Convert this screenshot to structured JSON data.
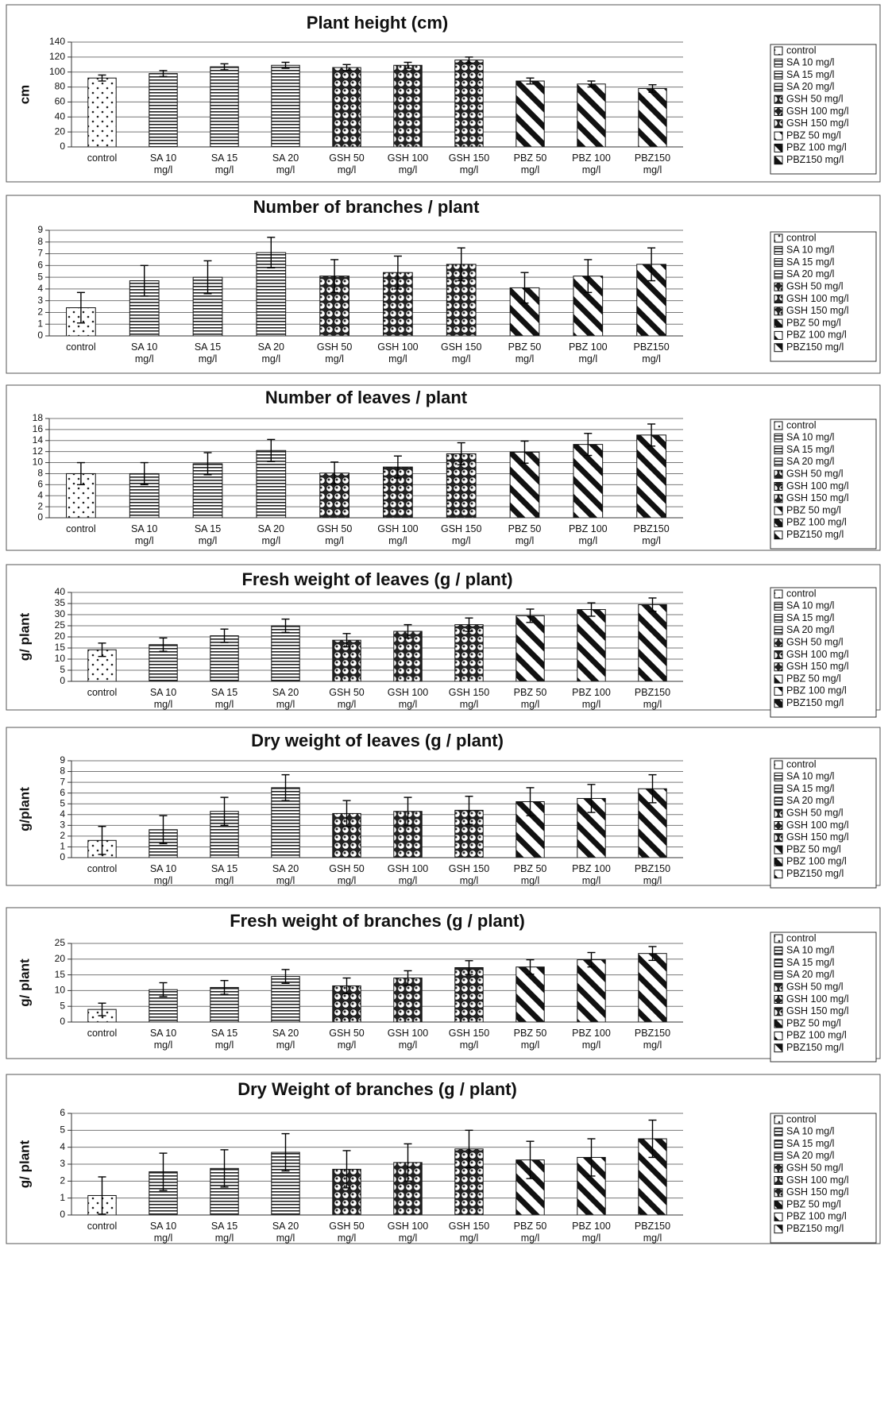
{
  "legend_labels": [
    "control",
    "SA 10 mg/l",
    "SA 15 mg/l",
    "SA 20 mg/l",
    "GSH 50 mg/l",
    "GSH 100 mg/l",
    "GSH 150 mg/l",
    "PBZ 50 mg/l",
    "PBZ 100 mg/l",
    "PBZ150 mg/l"
  ],
  "chart_data": [
    {
      "type": "bar",
      "title": "Plant height (cm)",
      "ylabel": "cm",
      "xlabel": "",
      "categories": [
        "control",
        "SA 10 mg/l",
        "SA 15 mg/l",
        "SA 20 mg/l",
        "GSH 50 mg/l",
        "GSH 100 mg/l",
        "GSH 150 mg/l",
        "PBZ 50 mg/l",
        "PBZ 100 mg/l",
        "PBZ150 mg/l"
      ],
      "values": [
        92,
        98,
        107,
        109,
        106,
        109,
        116,
        88,
        84,
        78
      ],
      "errors": [
        4,
        4,
        4,
        4,
        4,
        4,
        4,
        4,
        4,
        5
      ],
      "ylim": [
        0,
        140
      ],
      "ystep": 20,
      "grid": true,
      "legend_position": "right"
    },
    {
      "type": "bar",
      "title": "Number of branches / plant",
      "ylabel": "",
      "xlabel": "",
      "categories": [
        "control",
        "SA 10 mg/l",
        "SA 15 mg/l",
        "SA 20 mg/l",
        "GSH 50 mg/l",
        "GSH 100 mg/l",
        "GSH 150 mg/l",
        "PBZ 50 mg/l",
        "PBZ 100 mg/l",
        "PBZ150 mg/l"
      ],
      "values": [
        2.4,
        4.7,
        5.0,
        7.1,
        5.1,
        5.4,
        6.1,
        4.1,
        5.1,
        6.1
      ],
      "errors": [
        1.3,
        1.3,
        1.4,
        1.3,
        1.4,
        1.4,
        1.4,
        1.3,
        1.4,
        1.4
      ],
      "ylim": [
        0,
        9
      ],
      "ystep": 1,
      "grid": true,
      "legend_position": "right"
    },
    {
      "type": "bar",
      "title": "Number of leaves / plant",
      "ylabel": "",
      "xlabel": "",
      "categories": [
        "control",
        "SA 10 mg/l",
        "SA 15 mg/l",
        "SA 20 mg/l",
        "GSH 50 mg/l",
        "GSH 100 mg/l",
        "GSH 150 mg/l",
        "PBZ 50 mg/l",
        "PBZ 100 mg/l",
        "PBZ150 mg/l"
      ],
      "values": [
        8,
        8,
        9.8,
        12.2,
        8.1,
        9.2,
        11.6,
        11.9,
        13.3,
        15
      ],
      "errors": [
        2,
        2,
        2,
        2,
        2,
        2,
        2,
        2,
        2,
        2
      ],
      "ylim": [
        0,
        18
      ],
      "ystep": 2,
      "grid": true,
      "legend_position": "right"
    },
    {
      "type": "bar",
      "title": "Fresh weight of leaves (g / plant)",
      "ylabel": "g/ plant",
      "xlabel": "",
      "categories": [
        "control",
        "SA 10 mg/l",
        "SA 15 mg/l",
        "SA 20 mg/l",
        "GSH 50 mg/l",
        "GSH 100 mg/l",
        "GSH 150 mg/l",
        "PBZ 50 mg/l",
        "PBZ 100 mg/l",
        "PBZ150 mg/l"
      ],
      "values": [
        14.2,
        16.5,
        20.5,
        25,
        18.5,
        22.5,
        25.5,
        29.5,
        32.3,
        34.5
      ],
      "errors": [
        3,
        3,
        3,
        3,
        3,
        3,
        3,
        3,
        3,
        3
      ],
      "ylim": [
        0,
        40
      ],
      "ystep": 5,
      "grid": true,
      "legend_position": "right"
    },
    {
      "type": "bar",
      "title": "Dry weight of leaves (g / plant)",
      "ylabel": "g/plant",
      "xlabel": "",
      "categories": [
        "control",
        "SA 10 mg/l",
        "SA 15 mg/l",
        "SA 20 mg/l",
        "GSH 50 mg/l",
        "GSH 100 mg/l",
        "GSH 150 mg/l",
        "PBZ 50 mg/l",
        "PBZ 100 mg/l",
        "PBZ150 mg/l"
      ],
      "values": [
        1.6,
        2.6,
        4.3,
        6.5,
        4.1,
        4.3,
        4.4,
        5.2,
        5.5,
        6.4
      ],
      "errors": [
        1.3,
        1.3,
        1.3,
        1.2,
        1.2,
        1.3,
        1.3,
        1.3,
        1.3,
        1.3
      ],
      "ylim": [
        0,
        9
      ],
      "ystep": 1,
      "grid": true,
      "legend_position": "right"
    },
    {
      "type": "bar",
      "title": "Fresh weight of branches (g / plant)",
      "ylabel": "g/ plant",
      "xlabel": "",
      "categories": [
        "control",
        "SA 10 mg/l",
        "SA 15 mg/l",
        "SA 20 mg/l",
        "GSH 50 mg/l",
        "GSH 100 mg/l",
        "GSH 150 mg/l",
        "PBZ 50 mg/l",
        "PBZ 100 mg/l",
        "PBZ150 mg/l"
      ],
      "values": [
        4,
        10.3,
        11,
        14.5,
        11.5,
        14,
        17.3,
        17.5,
        19.8,
        21.8
      ],
      "errors": [
        2,
        2.2,
        2.2,
        2.2,
        2.5,
        2.3,
        2.2,
        2.3,
        2.3,
        2.2
      ],
      "ylim": [
        0,
        25
      ],
      "ystep": 5,
      "grid": true,
      "legend_position": "right"
    },
    {
      "type": "bar",
      "title": "Dry Weight of branches (g / plant)",
      "ylabel": "g/ plant",
      "xlabel": "",
      "categories": [
        "control",
        "SA 10 mg/l",
        "SA 15 mg/l",
        "SA 20 mg/l",
        "GSH 50 mg/l",
        "GSH 100 mg/l",
        "GSH 150 mg/l",
        "PBZ 50 mg/l",
        "PBZ 100 mg/l",
        "PBZ150 mg/l"
      ],
      "values": [
        1.15,
        2.55,
        2.75,
        3.7,
        2.7,
        3.1,
        3.9,
        3.25,
        3.4,
        4.5
      ],
      "errors": [
        1.1,
        1.1,
        1.1,
        1.1,
        1.1,
        1.1,
        1.1,
        1.1,
        1.1,
        1.1
      ],
      "ylim": [
        0,
        6
      ],
      "ystep": 1,
      "grid": true,
      "legend_position": "right"
    }
  ]
}
